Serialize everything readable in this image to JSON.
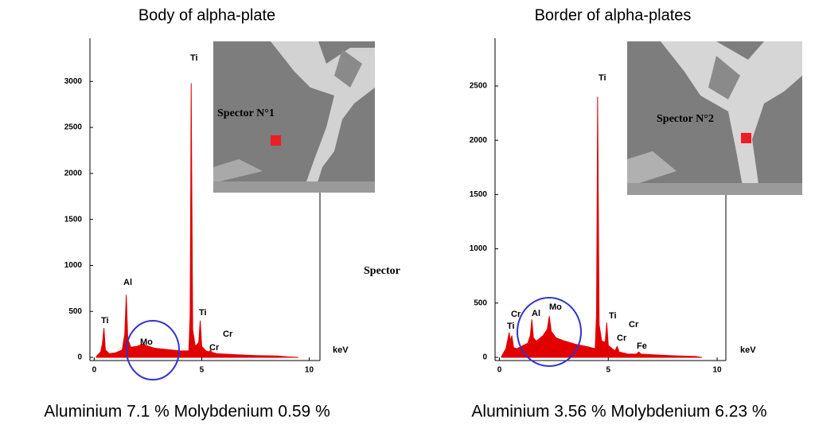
{
  "chart_data": [
    {
      "type": "area",
      "title": "Body of alpha-plate",
      "color": "#e00000",
      "x": [
        0.1,
        0.3,
        0.38,
        0.45,
        0.52,
        0.7,
        1.0,
        1.3,
        1.42,
        1.49,
        1.56,
        1.7,
        2.0,
        2.2,
        2.29,
        2.4,
        2.8,
        3.2,
        3.6,
        4.0,
        4.4,
        4.46,
        4.49,
        4.51,
        4.54,
        4.58,
        4.7,
        4.86,
        4.93,
        5.0,
        5.2,
        5.35,
        5.41,
        5.47,
        5.7,
        6.5,
        7.5,
        8.5,
        9.0,
        9.5
      ],
      "values": [
        10,
        60,
        150,
        320,
        80,
        40,
        50,
        80,
        250,
        680,
        200,
        110,
        120,
        140,
        150,
        130,
        100,
        90,
        80,
        70,
        70,
        450,
        1800,
        2980,
        1800,
        300,
        120,
        160,
        400,
        120,
        70,
        60,
        80,
        55,
        40,
        30,
        20,
        15,
        5,
        0
      ],
      "xlim": [
        -0.2,
        10.5
      ],
      "xticks": [
        0,
        5,
        10
      ],
      "ylim": [
        0,
        3470
      ],
      "yticks": [
        0,
        500,
        1000,
        1500,
        2000,
        2500,
        3000
      ],
      "annotations": [
        "Ti",
        "Al",
        "Mo",
        "Ti",
        "Ti",
        "Cr",
        "Cr",
        "keV"
      ],
      "inset_label": "Spector  N°1",
      "caption": "Aluminium 7.1 %  Molybdenium 0.59 %"
    },
    {
      "type": "area",
      "title": "Border of alpha-plates",
      "color": "#e00000",
      "x": [
        0.1,
        0.3,
        0.4,
        0.45,
        0.5,
        0.57,
        0.65,
        0.8,
        1.0,
        1.3,
        1.42,
        1.49,
        1.56,
        1.7,
        2.0,
        2.2,
        2.29,
        2.38,
        2.6,
        3.0,
        3.5,
        4.0,
        4.4,
        4.46,
        4.49,
        4.51,
        4.54,
        4.58,
        4.7,
        4.86,
        4.93,
        5.0,
        5.3,
        5.41,
        5.5,
        5.9,
        6.3,
        6.4,
        6.5,
        7.0,
        8.0,
        9.0,
        9.3
      ],
      "values": [
        10,
        80,
        180,
        230,
        150,
        200,
        90,
        80,
        100,
        130,
        200,
        350,
        180,
        150,
        200,
        260,
        380,
        240,
        180,
        150,
        120,
        100,
        80,
        400,
        1500,
        2400,
        1500,
        300,
        150,
        140,
        320,
        110,
        60,
        100,
        50,
        30,
        30,
        50,
        30,
        25,
        15,
        8,
        0
      ],
      "xlim": [
        -0.2,
        10.4
      ],
      "xticks": [
        0,
        5,
        10
      ],
      "ylim": [
        0,
        2940
      ],
      "yticks": [
        0,
        500,
        1000,
        1500,
        2000,
        2500
      ],
      "annotations": [
        "Cr",
        "Ti",
        "Al",
        "Mo",
        "Ti",
        "Ti",
        "Cr",
        "Cr",
        "Fe",
        "keV"
      ],
      "inset_label": "Spector  N°2",
      "caption": "Aluminium 3.56 %  Molybdenium 6.23 %"
    }
  ],
  "center_label": "Spector"
}
